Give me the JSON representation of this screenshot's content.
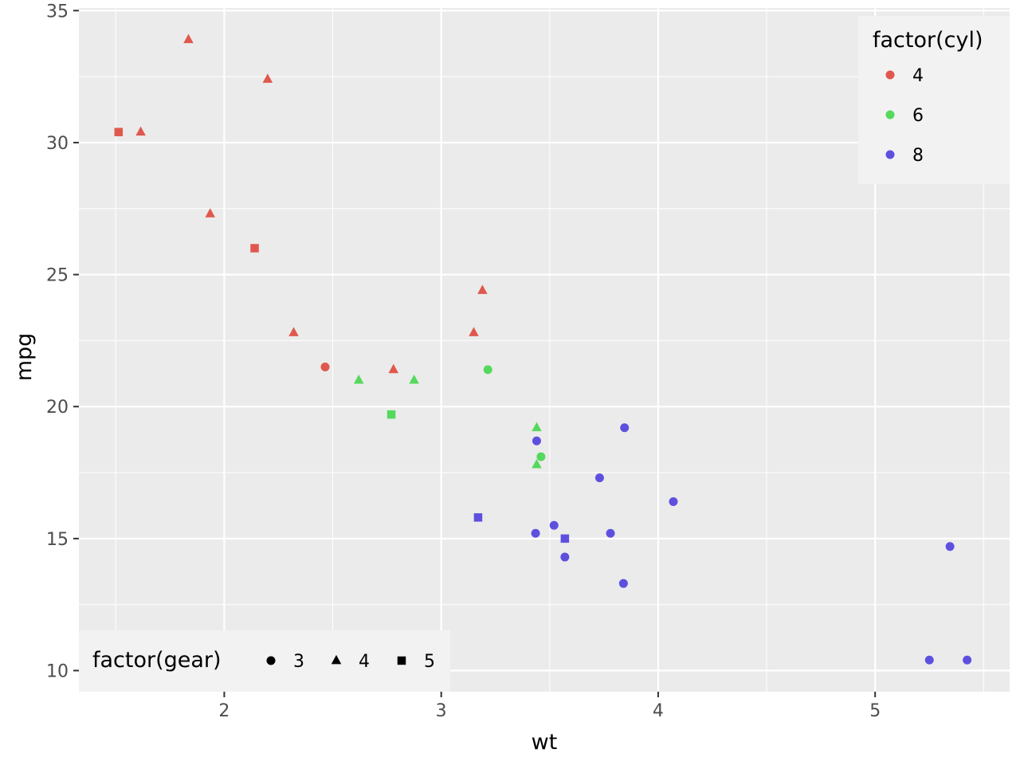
{
  "chart_data": {
    "type": "scatter",
    "xlabel": "wt",
    "ylabel": "mpg",
    "xlim": [
      1.33,
      5.62
    ],
    "ylim": [
      9.2,
      35.1
    ],
    "x_ticks": [
      2,
      3,
      4,
      5
    ],
    "y_ticks": [
      10,
      15,
      20,
      25,
      30,
      35
    ],
    "grid": true,
    "colors": {
      "4": "#e0584d",
      "6": "#55d95c",
      "8": "#5e50df"
    },
    "legend_color": {
      "title": "factor(cyl)",
      "placement": "top-right",
      "entries": [
        {
          "label": "4",
          "color": "#e0584d"
        },
        {
          "label": "6",
          "color": "#55d95c"
        },
        {
          "label": "8",
          "color": "#5e50df"
        }
      ]
    },
    "legend_shape": {
      "title": "factor(gear)",
      "placement": "bottom-left",
      "entries": [
        {
          "label": "3",
          "shape": "circle"
        },
        {
          "label": "4",
          "shape": "triangle"
        },
        {
          "label": "5",
          "shape": "square"
        }
      ]
    },
    "points": [
      {
        "wt": 1.835,
        "mpg": 33.9,
        "cyl": "4",
        "gear": "4"
      },
      {
        "wt": 2.2,
        "mpg": 32.4,
        "cyl": "4",
        "gear": "4"
      },
      {
        "wt": 1.513,
        "mpg": 30.4,
        "cyl": "4",
        "gear": "5"
      },
      {
        "wt": 1.615,
        "mpg": 30.4,
        "cyl": "4",
        "gear": "4"
      },
      {
        "wt": 1.935,
        "mpg": 27.3,
        "cyl": "4",
        "gear": "4"
      },
      {
        "wt": 2.14,
        "mpg": 26.0,
        "cyl": "4",
        "gear": "5"
      },
      {
        "wt": 3.19,
        "mpg": 24.4,
        "cyl": "4",
        "gear": "4"
      },
      {
        "wt": 2.32,
        "mpg": 22.8,
        "cyl": "4",
        "gear": "4"
      },
      {
        "wt": 3.15,
        "mpg": 22.8,
        "cyl": "4",
        "gear": "4"
      },
      {
        "wt": 2.465,
        "mpg": 21.5,
        "cyl": "4",
        "gear": "3"
      },
      {
        "wt": 2.78,
        "mpg": 21.4,
        "cyl": "4",
        "gear": "4"
      },
      {
        "wt": 3.215,
        "mpg": 21.4,
        "cyl": "6",
        "gear": "3"
      },
      {
        "wt": 2.62,
        "mpg": 21.0,
        "cyl": "6",
        "gear": "4"
      },
      {
        "wt": 2.875,
        "mpg": 21.0,
        "cyl": "6",
        "gear": "4"
      },
      {
        "wt": 2.77,
        "mpg": 19.7,
        "cyl": "6",
        "gear": "5"
      },
      {
        "wt": 3.44,
        "mpg": 19.2,
        "cyl": "6",
        "gear": "4"
      },
      {
        "wt": 3.46,
        "mpg": 18.1,
        "cyl": "6",
        "gear": "3"
      },
      {
        "wt": 3.44,
        "mpg": 17.8,
        "cyl": "6",
        "gear": "4"
      },
      {
        "wt": 3.845,
        "mpg": 19.2,
        "cyl": "8",
        "gear": "3"
      },
      {
        "wt": 3.44,
        "mpg": 18.7,
        "cyl": "8",
        "gear": "3"
      },
      {
        "wt": 3.73,
        "mpg": 17.3,
        "cyl": "8",
        "gear": "3"
      },
      {
        "wt": 4.07,
        "mpg": 16.4,
        "cyl": "8",
        "gear": "3"
      },
      {
        "wt": 3.17,
        "mpg": 15.8,
        "cyl": "8",
        "gear": "5"
      },
      {
        "wt": 3.52,
        "mpg": 15.5,
        "cyl": "8",
        "gear": "3"
      },
      {
        "wt": 3.435,
        "mpg": 15.2,
        "cyl": "8",
        "gear": "3"
      },
      {
        "wt": 3.78,
        "mpg": 15.2,
        "cyl": "8",
        "gear": "3"
      },
      {
        "wt": 3.57,
        "mpg": 15.0,
        "cyl": "8",
        "gear": "5"
      },
      {
        "wt": 3.57,
        "mpg": 14.3,
        "cyl": "8",
        "gear": "3"
      },
      {
        "wt": 5.345,
        "mpg": 14.7,
        "cyl": "8",
        "gear": "3"
      },
      {
        "wt": 3.84,
        "mpg": 13.3,
        "cyl": "8",
        "gear": "3"
      },
      {
        "wt": 5.25,
        "mpg": 10.4,
        "cyl": "8",
        "gear": "3"
      },
      {
        "wt": 5.424,
        "mpg": 10.4,
        "cyl": "8",
        "gear": "3"
      }
    ]
  }
}
